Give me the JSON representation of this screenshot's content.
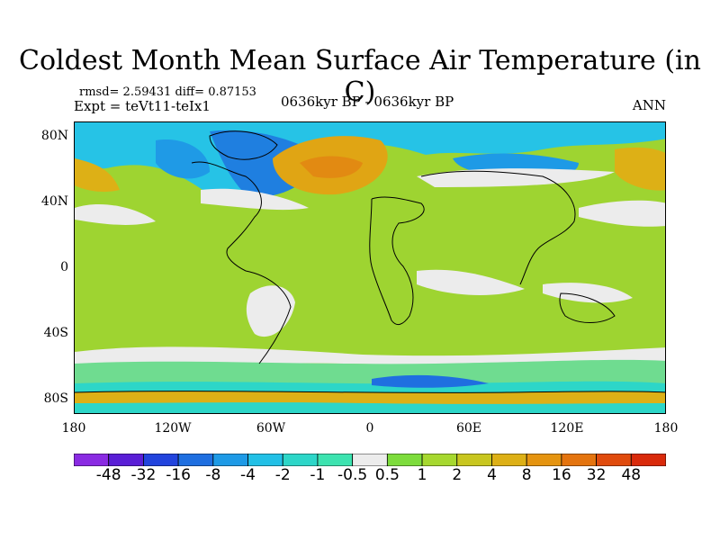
{
  "title": "Coldest Month Mean Surface Air Temperature (in C)",
  "stats": "rmsd= 2.59431 diff= 0.87153",
  "expt": "Expt = teVt11-teIx1",
  "period": "0636kyr BP - 0636kyr BP",
  "season": "ANN",
  "lat_labels": [
    "80N",
    "40N",
    "0",
    "40S",
    "80S"
  ],
  "lon_labels": [
    "180",
    "120W",
    "60W",
    "0",
    "60E",
    "120E",
    "180"
  ],
  "colorbar": {
    "colors": [
      "#8a2be2",
      "#5a1ed6",
      "#2244dd",
      "#1f6fe0",
      "#1e9ae6",
      "#22c0e6",
      "#2dd6c8",
      "#3de3b0",
      "#ececec",
      "#7ddc3c",
      "#a6d82f",
      "#c8c61f",
      "#ddb016",
      "#e59410",
      "#e4740f",
      "#e04b0d",
      "#d92a0b"
    ],
    "labels": [
      "-48",
      "-32",
      "-16",
      "-8",
      "-4",
      "-2",
      "-1",
      "-0.5",
      "0.5",
      "1",
      "2",
      "4",
      "8",
      "16",
      "32",
      "48"
    ]
  }
}
